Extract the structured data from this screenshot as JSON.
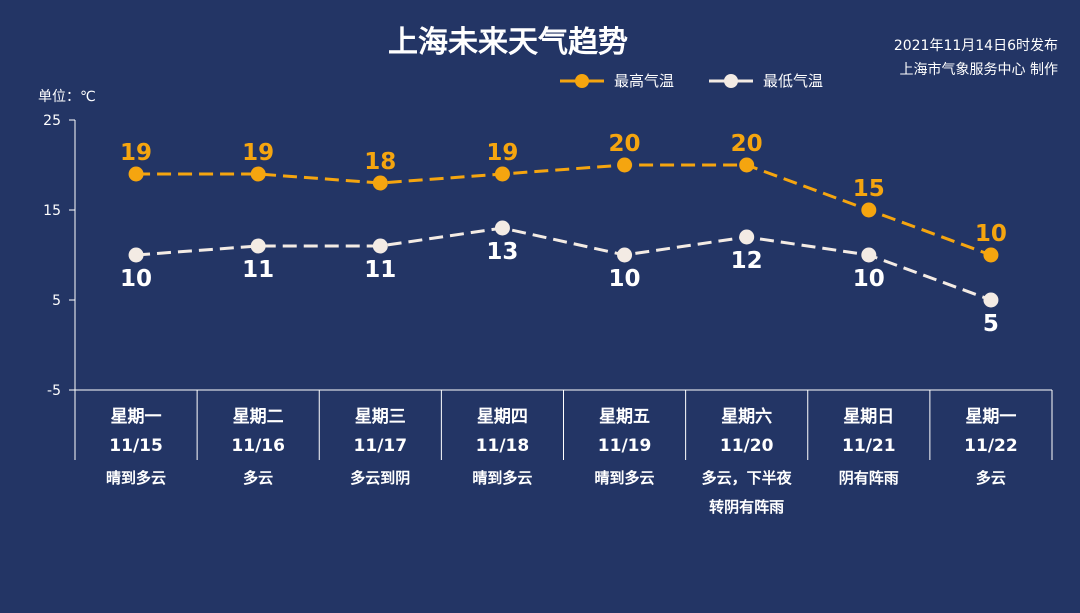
{
  "header": {
    "title": "上海未来天气趋势",
    "publish_time": "2021年11月14日6时发布",
    "publisher": "上海市气象服务中心 制作"
  },
  "colors": {
    "background": "#233565",
    "high": "#f5a50f",
    "low": "#f3ebe4",
    "axis": "#ffffff"
  },
  "chart_data": {
    "type": "line",
    "title": "上海未来天气趋势",
    "ylabel": "单位：℃",
    "ylim": [
      -5,
      25
    ],
    "yticks": [
      25,
      15,
      5,
      -5
    ],
    "legend_position": "top-right",
    "grid": false,
    "categories": [
      {
        "day": "星期一",
        "date": "11/15",
        "weather": [
          "晴到多云"
        ]
      },
      {
        "day": "星期二",
        "date": "11/16",
        "weather": [
          "多云"
        ]
      },
      {
        "day": "星期三",
        "date": "11/17",
        "weather": [
          "多云到阴"
        ]
      },
      {
        "day": "星期四",
        "date": "11/18",
        "weather": [
          "晴到多云"
        ]
      },
      {
        "day": "星期五",
        "date": "11/19",
        "weather": [
          "晴到多云"
        ]
      },
      {
        "day": "星期六",
        "date": "11/20",
        "weather": [
          "多云，下半夜",
          "转阴有阵雨"
        ]
      },
      {
        "day": "星期日",
        "date": "11/21",
        "weather": [
          "阴有阵雨"
        ]
      },
      {
        "day": "星期一",
        "date": "11/22",
        "weather": [
          "多云"
        ]
      }
    ],
    "series": [
      {
        "name": "最高气温",
        "color": "#f5a50f",
        "values": [
          19,
          19,
          18,
          19,
          20,
          20,
          15,
          10
        ]
      },
      {
        "name": "最低气温",
        "color": "#f3ebe4",
        "values": [
          10,
          11,
          11,
          13,
          10,
          12,
          10,
          5
        ]
      }
    ]
  }
}
